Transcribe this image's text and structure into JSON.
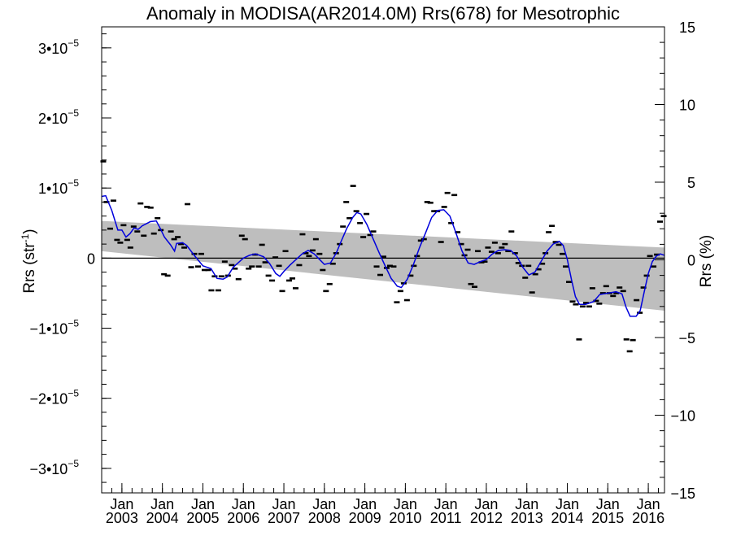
{
  "chart_data": {
    "type": "scatter",
    "title": "Anomaly in MODISA(AR2014.0M) Rrs(678) for Mesotrophic",
    "ylabel_left": "Rrs (str",
    "ylabel_left_sup": "-1",
    "ylabel_left_close": ")",
    "ylabel_right": "Rrs (%)",
    "x_range": [
      2002.5,
      2016.4
    ],
    "ylim": [
      -3.35e-05,
      3.3e-05
    ],
    "right_ylim": [
      -15,
      15
    ],
    "left_ticks": [
      {
        "value": -3e-05,
        "mant": "−3•10",
        "exp": "−5"
      },
      {
        "value": -2e-05,
        "mant": "−2•10",
        "exp": "−5"
      },
      {
        "value": -1e-05,
        "mant": "−1•10",
        "exp": "−5"
      },
      {
        "value": 0,
        "mant": "0",
        "exp": ""
      },
      {
        "value": 1e-05,
        "mant": "1•10",
        "exp": "−5"
      },
      {
        "value": 2e-05,
        "mant": "2•10",
        "exp": "−5"
      },
      {
        "value": 3e-05,
        "mant": "3•10",
        "exp": "−5"
      }
    ],
    "right_ticks": [
      {
        "value": -15,
        "label": "−15"
      },
      {
        "value": -10,
        "label": "−10"
      },
      {
        "value": -5,
        "label": "−5"
      },
      {
        "value": 0,
        "label": "0"
      },
      {
        "value": 5,
        "label": "5"
      },
      {
        "value": 10,
        "label": "10"
      },
      {
        "value": 15,
        "label": "15"
      }
    ],
    "x_ticks": [
      {
        "value": 2003.0,
        "month": "Jan",
        "year": "2003"
      },
      {
        "value": 2004.0,
        "month": "Jan",
        "year": "2004"
      },
      {
        "value": 2005.0,
        "month": "Jan",
        "year": "2005"
      },
      {
        "value": 2006.0,
        "month": "Jan",
        "year": "2006"
      },
      {
        "value": 2007.0,
        "month": "Jan",
        "year": "2007"
      },
      {
        "value": 2008.0,
        "month": "Jan",
        "year": "2008"
      },
      {
        "value": 2009.0,
        "month": "Jan",
        "year": "2009"
      },
      {
        "value": 2010.0,
        "month": "Jan",
        "year": "2010"
      },
      {
        "value": 2011.0,
        "month": "Jan",
        "year": "2011"
      },
      {
        "value": 2012.0,
        "month": "Jan",
        "year": "2012"
      },
      {
        "value": 2013.0,
        "month": "Jan",
        "year": "2013"
      },
      {
        "value": 2014.0,
        "month": "Jan",
        "year": "2014"
      },
      {
        "value": 2015.0,
        "month": "Jan",
        "year": "2015"
      },
      {
        "value": 2016.0,
        "month": "Jan",
        "year": "2016"
      }
    ],
    "band": {
      "upper": [
        [
          2002.5,
          5.3e-06
        ],
        [
          2016.4,
          1.5e-06
        ]
      ],
      "lower": [
        [
          2002.5,
          1e-06
        ],
        [
          2016.4,
          -7.5e-06
        ]
      ]
    },
    "points": [
      [
        2002.54,
        1.38e-05
      ],
      [
        2002.62,
        8e-06
      ],
      [
        2002.71,
        4.2e-06
      ],
      [
        2002.79,
        8.2e-06
      ],
      [
        2002.88,
        2.6e-06
      ],
      [
        2002.96,
        2.2e-06
      ],
      [
        2003.04,
        4.7e-06
      ],
      [
        2003.13,
        2.6e-06
      ],
      [
        2003.21,
        1.5e-06
      ],
      [
        2003.29,
        4.5e-06
      ],
      [
        2003.38,
        3.8e-06
      ],
      [
        2003.46,
        7.8e-06
      ],
      [
        2003.54,
        3.2e-06
      ],
      [
        2003.62,
        7.3e-06
      ],
      [
        2003.71,
        7.2e-06
      ],
      [
        2003.79,
        3.5e-06
      ],
      [
        2003.88,
        5.7e-06
      ],
      [
        2003.96,
        4e-06
      ],
      [
        2004.04,
        -2.3e-06
      ],
      [
        2004.13,
        -2.5e-06
      ],
      [
        2004.21,
        3.8e-06
      ],
      [
        2004.29,
        2.7e-06
      ],
      [
        2004.38,
        3e-06
      ],
      [
        2004.46,
        2e-06
      ],
      [
        2004.54,
        1.5e-06
      ],
      [
        2004.62,
        7.7e-06
      ],
      [
        2004.71,
        -1.3e-06
      ],
      [
        2004.79,
        6e-07
      ],
      [
        2004.88,
        -1.2e-06
      ],
      [
        2004.96,
        6e-07
      ],
      [
        2005.04,
        -1.7e-06
      ],
      [
        2005.13,
        -1.7e-06
      ],
      [
        2005.21,
        -4.6e-06
      ],
      [
        2005.29,
        -2.6e-06
      ],
      [
        2005.38,
        -4.6e-06
      ],
      [
        2005.46,
        -2.6e-06
      ],
      [
        2005.54,
        -5e-07
      ],
      [
        2005.62,
        -2.5e-06
      ],
      [
        2005.71,
        -1e-06
      ],
      [
        2005.79,
        -1.5e-06
      ],
      [
        2005.88,
        -3e-06
      ],
      [
        2005.96,
        3.2e-06
      ],
      [
        2006.04,
        2.7e-06
      ],
      [
        2006.13,
        -1.5e-06
      ],
      [
        2006.21,
        -1.2e-06
      ],
      [
        2006.29,
        5e-07
      ],
      [
        2006.38,
        -1.2e-06
      ],
      [
        2006.46,
        1.9e-06
      ],
      [
        2006.54,
        -6e-07
      ],
      [
        2006.62,
        -2.5e-06
      ],
      [
        2006.71,
        -3.2e-06
      ],
      [
        2006.79,
        1e-07
      ],
      [
        2006.88,
        -1.1e-06
      ],
      [
        2006.96,
        -4.7e-06
      ],
      [
        2007.04,
        1e-06
      ],
      [
        2007.13,
        -3.2e-06
      ],
      [
        2007.21,
        -2.9e-06
      ],
      [
        2007.29,
        -4.3e-06
      ],
      [
        2007.38,
        -1e-06
      ],
      [
        2007.46,
        3.4e-06
      ],
      [
        2007.54,
        7e-07
      ],
      [
        2007.62,
        3e-07
      ],
      [
        2007.71,
        1.1e-06
      ],
      [
        2007.79,
        2.7e-06
      ],
      [
        2007.88,
        6e-07
      ],
      [
        2007.96,
        -1.7e-06
      ],
      [
        2008.04,
        -4.7e-06
      ],
      [
        2008.13,
        -3.7e-06
      ],
      [
        2008.21,
        -8e-07
      ],
      [
        2008.29,
        7e-07
      ],
      [
        2008.38,
        2e-06
      ],
      [
        2008.46,
        4.5e-06
      ],
      [
        2008.54,
        8e-06
      ],
      [
        2008.62,
        5.7e-06
      ],
      [
        2008.71,
        1.03e-05
      ],
      [
        2008.79,
        6.7e-06
      ],
      [
        2008.88,
        5e-06
      ],
      [
        2008.96,
        3e-06
      ],
      [
        2009.04,
        6.3e-06
      ],
      [
        2009.13,
        3.3e-06
      ],
      [
        2009.21,
        3.8e-06
      ],
      [
        2009.29,
        -1.2e-06
      ],
      [
        2009.38,
        -2.4e-06
      ],
      [
        2009.46,
        2e-07
      ],
      [
        2009.54,
        -1.4e-06
      ],
      [
        2009.62,
        -1.1e-06
      ],
      [
        2009.71,
        -1.2e-06
      ],
      [
        2009.79,
        -6.3e-06
      ],
      [
        2009.88,
        -4.7e-06
      ],
      [
        2009.96,
        -3.6e-06
      ],
      [
        2010.04,
        -6e-06
      ],
      [
        2010.13,
        -2.5e-06
      ],
      [
        2010.21,
        -1.1e-06
      ],
      [
        2010.29,
        3e-07
      ],
      [
        2010.38,
        2.5e-06
      ],
      [
        2010.46,
        2.7e-06
      ],
      [
        2010.54,
        8e-06
      ],
      [
        2010.62,
        7.9e-06
      ],
      [
        2010.71,
        6.7e-06
      ],
      [
        2010.79,
        6.7e-06
      ],
      [
        2010.88,
        2.3e-06
      ],
      [
        2010.96,
        7.3e-06
      ],
      [
        2011.04,
        9.3e-06
      ],
      [
        2011.13,
        5e-06
      ],
      [
        2011.21,
        9e-06
      ],
      [
        2011.29,
        3.7e-06
      ],
      [
        2011.38,
        2e-06
      ],
      [
        2011.46,
        4e-07
      ],
      [
        2011.54,
        1.2e-06
      ],
      [
        2011.62,
        -3.7e-06
      ],
      [
        2011.71,
        -4.1e-06
      ],
      [
        2011.79,
        1e-06
      ],
      [
        2011.88,
        -6e-07
      ],
      [
        2011.96,
        -5e-07
      ],
      [
        2012.04,
        1.5e-06
      ],
      [
        2012.13,
        9e-07
      ],
      [
        2012.21,
        2.2e-06
      ],
      [
        2012.29,
        7e-07
      ],
      [
        2012.38,
        1.5e-06
      ],
      [
        2012.46,
        2e-06
      ],
      [
        2012.54,
        1e-06
      ],
      [
        2012.62,
        3.8e-06
      ],
      [
        2012.71,
        7e-07
      ],
      [
        2012.79,
        -7e-07
      ],
      [
        2012.88,
        -1.1e-06
      ],
      [
        2012.96,
        -2.8e-06
      ],
      [
        2013.04,
        -1.1e-06
      ],
      [
        2013.13,
        -4.9e-06
      ],
      [
        2013.21,
        -2.3e-06
      ],
      [
        2013.29,
        -1.6e-06
      ],
      [
        2013.38,
        -8e-07
      ],
      [
        2013.46,
        7e-07
      ],
      [
        2013.54,
        3.7e-06
      ],
      [
        2013.62,
        4.6e-06
      ],
      [
        2013.71,
        2.3e-06
      ],
      [
        2013.79,
        1.9e-06
      ],
      [
        2013.88,
        6e-07
      ],
      [
        2013.96,
        -1.2e-06
      ],
      [
        2014.04,
        -3.4e-06
      ],
      [
        2014.13,
        -6.2e-06
      ],
      [
        2014.21,
        -6.6e-06
      ],
      [
        2014.29,
        -1.16e-05
      ],
      [
        2014.38,
        -6.9e-06
      ],
      [
        2014.46,
        -6.4e-06
      ],
      [
        2014.54,
        -6.9e-06
      ],
      [
        2014.62,
        -4.3e-06
      ],
      [
        2014.71,
        -6.1e-06
      ],
      [
        2014.79,
        -6.5e-06
      ],
      [
        2014.88,
        -5e-06
      ],
      [
        2014.96,
        -4e-06
      ],
      [
        2015.04,
        -5e-06
      ],
      [
        2015.13,
        -5.4e-06
      ],
      [
        2015.21,
        -5e-06
      ],
      [
        2015.29,
        -4.2e-06
      ],
      [
        2015.38,
        -4.7e-06
      ],
      [
        2015.46,
        -1.16e-05
      ],
      [
        2015.54,
        -1.33e-05
      ],
      [
        2015.62,
        -1.17e-05
      ],
      [
        2015.71,
        -6e-06
      ],
      [
        2015.79,
        -7.8e-06
      ],
      [
        2015.88,
        -4.2e-06
      ],
      [
        2015.96,
        -2.5e-06
      ],
      [
        2016.04,
        3e-07
      ],
      [
        2016.13,
        -1.2e-06
      ],
      [
        2016.21,
        5e-07
      ],
      [
        2016.29,
        5.2e-06
      ],
      [
        2016.38,
        6e-06
      ]
    ],
    "smooth": [
      [
        2002.5,
        8.8e-06
      ],
      [
        2002.6,
        8.9e-06
      ],
      [
        2002.75,
        6.8e-06
      ],
      [
        2002.9,
        4e-06
      ],
      [
        2003.0,
        4e-06
      ],
      [
        2003.1,
        3e-06
      ],
      [
        2003.2,
        3.5e-06
      ],
      [
        2003.3,
        4.3e-06
      ],
      [
        2003.4,
        4.1e-06
      ],
      [
        2003.5,
        4.6e-06
      ],
      [
        2003.7,
        5.2e-06
      ],
      [
        2003.85,
        5.3e-06
      ],
      [
        2003.95,
        4.2e-06
      ],
      [
        2004.05,
        3e-06
      ],
      [
        2004.2,
        1.9e-06
      ],
      [
        2004.3,
        1e-06
      ],
      [
        2004.35,
        2.1e-06
      ],
      [
        2004.5,
        2.2e-06
      ],
      [
        2004.6,
        1.8e-06
      ],
      [
        2004.8,
        3e-07
      ],
      [
        2005.0,
        -1.1e-06
      ],
      [
        2005.2,
        -1.5e-06
      ],
      [
        2005.35,
        -2.9e-06
      ],
      [
        2005.5,
        -3e-06
      ],
      [
        2005.6,
        -2.7e-06
      ],
      [
        2005.75,
        -1.3e-06
      ],
      [
        2006.0,
        0.0
      ],
      [
        2006.15,
        4e-07
      ],
      [
        2006.3,
        6e-07
      ],
      [
        2006.5,
        2e-07
      ],
      [
        2006.65,
        -8e-07
      ],
      [
        2006.8,
        -2.2e-06
      ],
      [
        2006.9,
        -2.6e-06
      ],
      [
        2007.0,
        -1.9e-06
      ],
      [
        2007.15,
        -1e-06
      ],
      [
        2007.3,
        -2e-07
      ],
      [
        2007.45,
        6e-07
      ],
      [
        2007.6,
        1.1e-06
      ],
      [
        2007.75,
        6e-07
      ],
      [
        2007.9,
        -3e-07
      ],
      [
        2008.0,
        -9e-07
      ],
      [
        2008.15,
        -7e-07
      ],
      [
        2008.3,
        8e-07
      ],
      [
        2008.4,
        2.2e-06
      ],
      [
        2008.55,
        4.2e-06
      ],
      [
        2008.7,
        5.8e-06
      ],
      [
        2008.8,
        6.5e-06
      ],
      [
        2008.9,
        6.3e-06
      ],
      [
        2009.05,
        4.8e-06
      ],
      [
        2009.2,
        2.8e-06
      ],
      [
        2009.35,
        8e-07
      ],
      [
        2009.5,
        -1.1e-06
      ],
      [
        2009.65,
        -2.9e-06
      ],
      [
        2009.8,
        -4e-06
      ],
      [
        2009.9,
        -4.2e-06
      ],
      [
        2010.05,
        -3e-06
      ],
      [
        2010.2,
        -9e-07
      ],
      [
        2010.35,
        1.5e-06
      ],
      [
        2010.5,
        3.6e-06
      ],
      [
        2010.65,
        5.8e-06
      ],
      [
        2010.8,
        6.8e-06
      ],
      [
        2010.95,
        6.9e-06
      ],
      [
        2011.1,
        6e-06
      ],
      [
        2011.25,
        3.6e-06
      ],
      [
        2011.4,
        1e-06
      ],
      [
        2011.55,
        -7e-07
      ],
      [
        2011.7,
        -9e-07
      ],
      [
        2011.85,
        -5e-07
      ],
      [
        2012.0,
        -2e-07
      ],
      [
        2012.15,
        6e-07
      ],
      [
        2012.3,
        1.1e-06
      ],
      [
        2012.45,
        1.2e-06
      ],
      [
        2012.6,
        1.1e-06
      ],
      [
        2012.75,
        3e-07
      ],
      [
        2012.9,
        -1.3e-06
      ],
      [
        2013.05,
        -2.4e-06
      ],
      [
        2013.2,
        -2e-06
      ],
      [
        2013.35,
        -5e-07
      ],
      [
        2013.5,
        1e-06
      ],
      [
        2013.65,
        2e-06
      ],
      [
        2013.8,
        2.4e-06
      ],
      [
        2013.9,
        1.8e-06
      ],
      [
        2014.0,
        -2e-07
      ],
      [
        2014.1,
        -3e-06
      ],
      [
        2014.2,
        -5.5e-06
      ],
      [
        2014.3,
        -6.6e-06
      ],
      [
        2014.45,
        -6.6e-06
      ],
      [
        2014.55,
        -6.4e-06
      ],
      [
        2014.65,
        -6.2e-06
      ],
      [
        2014.8,
        -5.2e-06
      ],
      [
        2015.0,
        -5e-06
      ],
      [
        2015.2,
        -4.8e-06
      ],
      [
        2015.35,
        -5.1e-06
      ],
      [
        2015.45,
        -7e-06
      ],
      [
        2015.55,
        -8.3e-06
      ],
      [
        2015.7,
        -8.3e-06
      ],
      [
        2015.8,
        -7.5e-06
      ],
      [
        2015.9,
        -4.8e-06
      ],
      [
        2016.0,
        -2.2e-06
      ],
      [
        2016.1,
        -5e-07
      ],
      [
        2016.2,
        3e-07
      ],
      [
        2016.3,
        6e-07
      ],
      [
        2016.4,
        4e-07
      ]
    ],
    "grid": false,
    "colors": {
      "smooth": "#0000dd",
      "band": "#bebebe",
      "points": "#000000",
      "zero_line": "#000000"
    }
  }
}
